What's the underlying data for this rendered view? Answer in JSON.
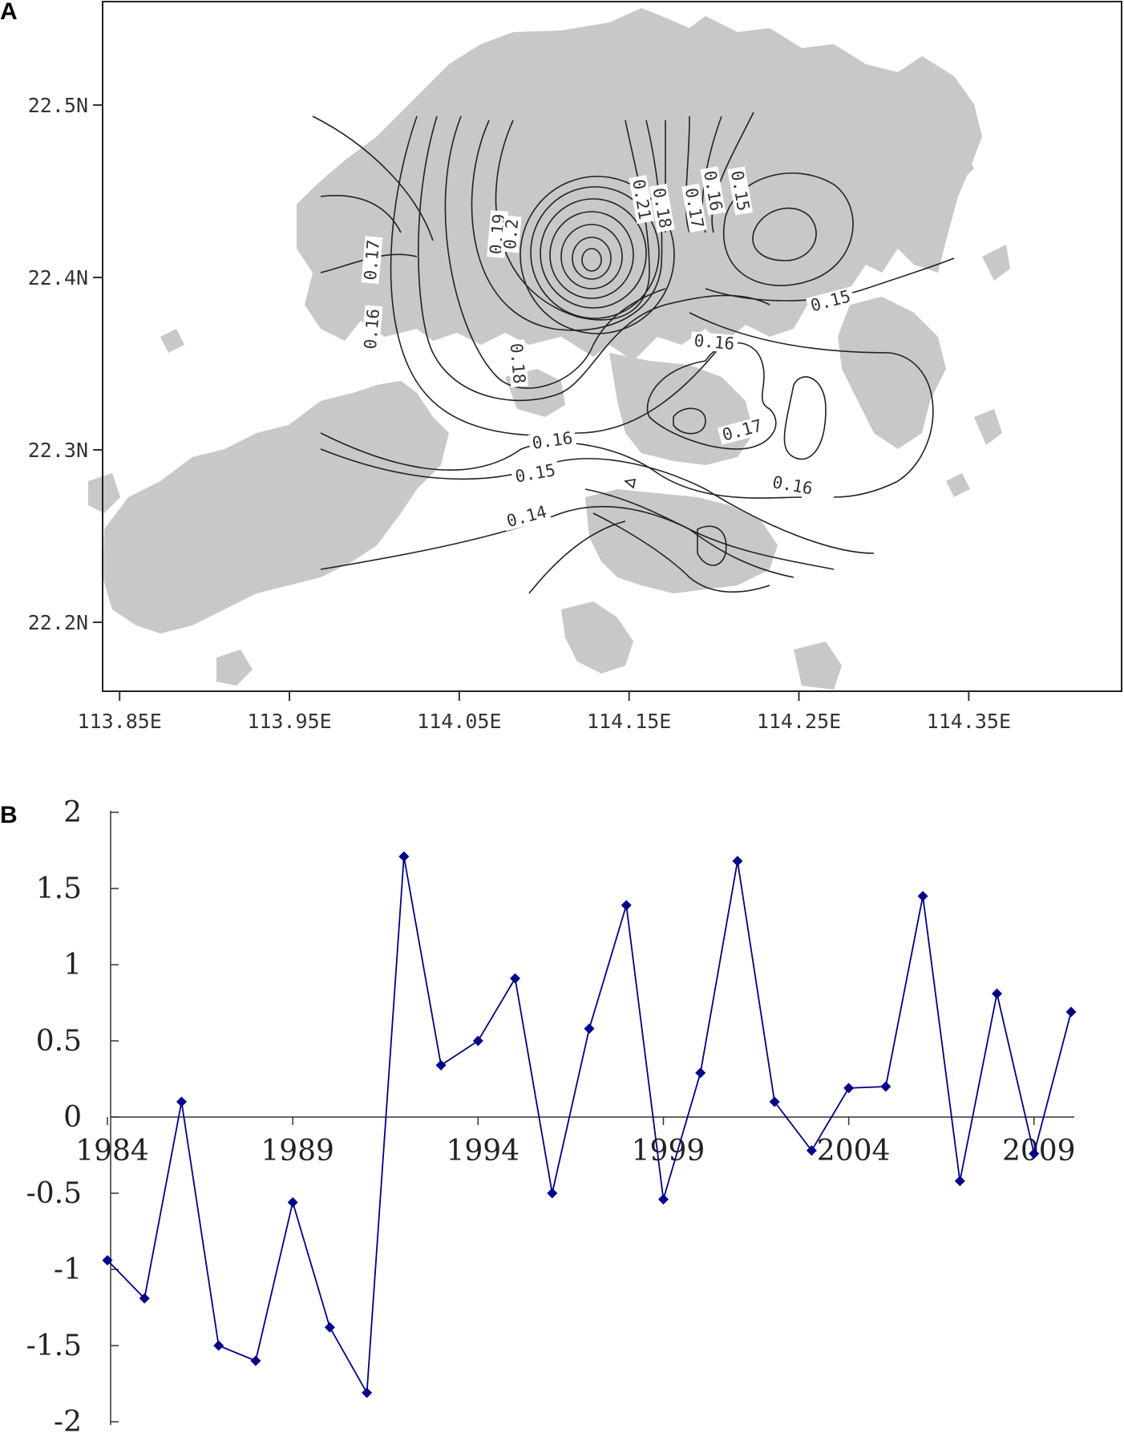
{
  "panels": {
    "a_label": "A",
    "b_label": "B"
  },
  "colors": {
    "land": "#c8c8c8",
    "contour": "#222222",
    "series": "#00008b",
    "axis": "#333333"
  },
  "chart_data": [
    {
      "type": "contour-map",
      "panel": "A",
      "x_ticks": [
        "113.85E",
        "113.95E",
        "114.05E",
        "114.15E",
        "114.25E",
        "114.35E"
      ],
      "y_ticks": [
        "22.5N",
        "22.4N",
        "22.3N",
        "22.2N"
      ],
      "xlim": [
        113.84,
        114.44
      ],
      "ylim": [
        22.16,
        22.56
      ],
      "contour_labels": [
        {
          "text": "0.16",
          "lon": 114.0,
          "lat": 22.37,
          "rotate": -85
        },
        {
          "text": "0.17",
          "lon": 114.0,
          "lat": 22.41,
          "rotate": -85
        },
        {
          "text": "0.19",
          "lon": 114.074,
          "lat": 22.425,
          "rotate": -85
        },
        {
          "text": "0.2",
          "lon": 114.082,
          "lat": 22.425,
          "rotate": -85
        },
        {
          "text": "0.18",
          "lon": 114.083,
          "lat": 22.35,
          "rotate": 85
        },
        {
          "text": "0.21",
          "lon": 114.156,
          "lat": 22.445,
          "rotate": 80
        },
        {
          "text": "0.18",
          "lon": 114.168,
          "lat": 22.44,
          "rotate": 80
        },
        {
          "text": "0.17",
          "lon": 114.187,
          "lat": 22.44,
          "rotate": 80
        },
        {
          "text": "0.16",
          "lon": 114.198,
          "lat": 22.45,
          "rotate": 80
        },
        {
          "text": "0.15",
          "lon": 114.214,
          "lat": 22.45,
          "rotate": 80
        },
        {
          "text": "0.15",
          "lon": 114.269,
          "lat": 22.385,
          "rotate": -15
        },
        {
          "text": "0.16",
          "lon": 114.2,
          "lat": 22.361,
          "rotate": 5
        },
        {
          "text": "0.17",
          "lon": 114.217,
          "lat": 22.31,
          "rotate": -15
        },
        {
          "text": "0.16",
          "lon": 114.105,
          "lat": 22.304,
          "rotate": -8
        },
        {
          "text": "0.15",
          "lon": 114.095,
          "lat": 22.285,
          "rotate": -10
        },
        {
          "text": "0.14",
          "lon": 114.09,
          "lat": 22.26,
          "rotate": -15
        },
        {
          "text": "0.16",
          "lon": 114.246,
          "lat": 22.278,
          "rotate": 10
        }
      ]
    },
    {
      "type": "line",
      "panel": "B",
      "x": [
        1984,
        1985,
        1986,
        1987,
        1988,
        1989,
        1990,
        1991,
        1992,
        1993,
        1994,
        1995,
        1996,
        1997,
        1998,
        1999,
        2000,
        2001,
        2002,
        2003,
        2004,
        2005,
        2006,
        2007,
        2008,
        2009,
        2010
      ],
      "series": [
        {
          "values": [
            -0.94,
            -1.19,
            0.1,
            -1.5,
            -1.6,
            -0.56,
            -1.38,
            -1.81,
            1.71,
            0.34,
            0.5,
            0.91,
            -0.5,
            0.58,
            1.39,
            -0.54,
            0.29,
            1.68,
            0.1,
            -0.22,
            0.19,
            0.2,
            1.45,
            -0.42,
            0.81,
            -0.24,
            0.69
          ]
        }
      ],
      "x_tick_labels": [
        "1984",
        "1989",
        "1994",
        "1999",
        "2004",
        "2009"
      ],
      "y_tick_labels": [
        "2",
        "1.5",
        "1",
        "0.5",
        "0",
        "-0.5",
        "-1",
        "-1.5",
        "-2"
      ],
      "ylim": [
        -2,
        2
      ],
      "xlim": [
        1984,
        2010
      ],
      "marker": "diamond",
      "grid": false
    }
  ]
}
